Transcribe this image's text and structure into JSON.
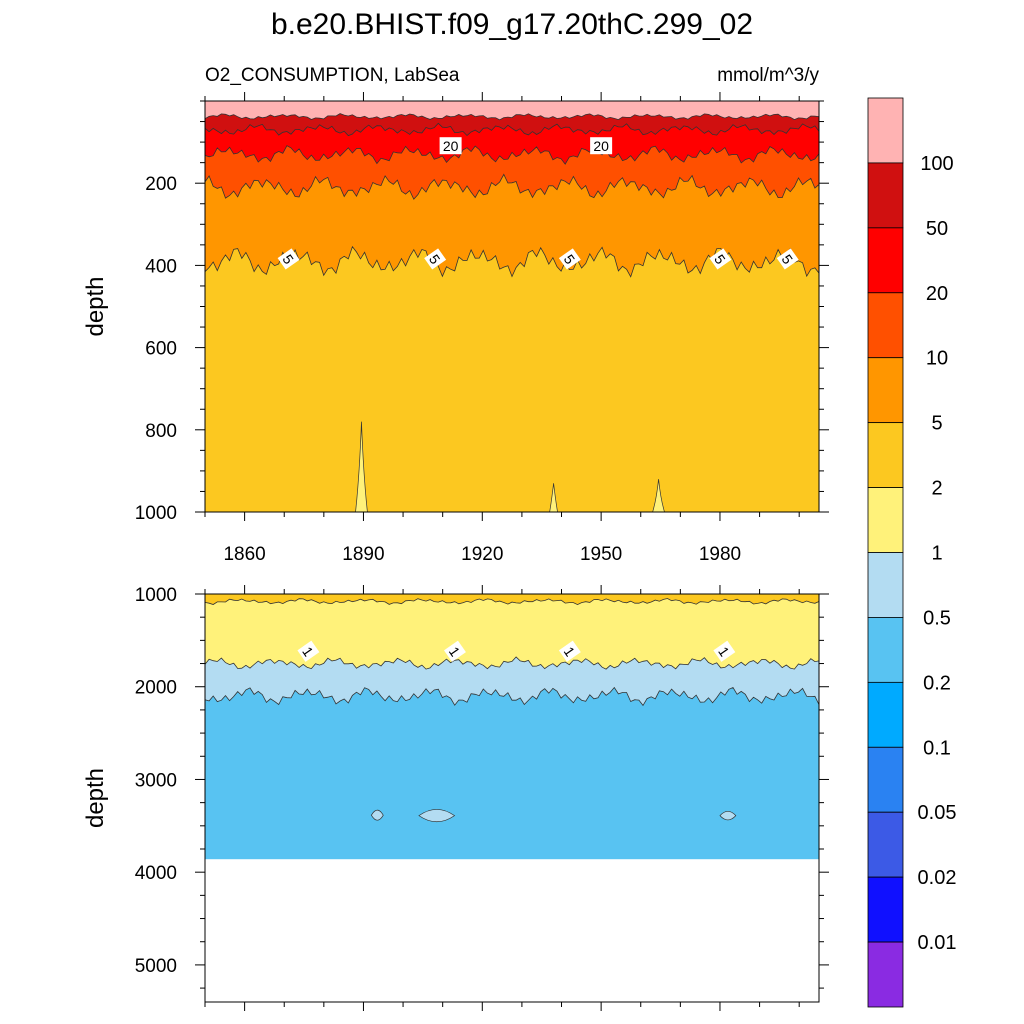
{
  "title": "b.e20.BHIST.f09_g17.20thC.299_02",
  "left_string": "O2_CONSUMPTION, LabSea",
  "right_string": "mmol/m^3/y",
  "chart_data": [
    {
      "type": "heatmap",
      "panel": "upper",
      "ylabel": "depth",
      "xlim": [
        1850,
        2005
      ],
      "ylim": [
        1000,
        0
      ],
      "x_ticks": [
        1860,
        1890,
        1920,
        1950,
        1980
      ],
      "y_ticks": [
        200,
        400,
        600,
        800,
        1000
      ],
      "contour_labels": [
        "20",
        "20",
        "5",
        "5",
        "5",
        "5",
        "5"
      ],
      "bands": [
        {
          "range": "> 100",
          "top_depth": 0,
          "bottom_depth": 38,
          "color": "#ffb3b3"
        },
        {
          "range": "50-100",
          "top_depth": 38,
          "bottom_depth": 70,
          "color": "#d01010"
        },
        {
          "range": "20-50",
          "top_depth": 70,
          "bottom_depth": 130,
          "color": "#ff0000"
        },
        {
          "range": "10-20",
          "top_depth": 130,
          "bottom_depth": 210,
          "color": "#ff5000"
        },
        {
          "range": "5-10",
          "top_depth": 210,
          "bottom_depth": 390,
          "color": "#ff9600"
        },
        {
          "range": "2-5",
          "top_depth": 390,
          "bottom_depth": 1000,
          "color": "#fcc820"
        }
      ],
      "extra_regions": [
        {
          "range": "1-2",
          "years": [
            1888,
            1891
          ],
          "depth": [
            780,
            1000
          ]
        },
        {
          "range": "1-2",
          "years": [
            1937,
            1939
          ],
          "depth": [
            930,
            1000
          ]
        },
        {
          "range": "1-2",
          "years": [
            1963,
            1966
          ],
          "depth": [
            920,
            1000
          ]
        }
      ]
    },
    {
      "type": "heatmap",
      "panel": "lower",
      "ylabel": "depth",
      "xlim": [
        1850,
        2005
      ],
      "ylim": [
        5400,
        1000
      ],
      "y_ticks": [
        1000,
        2000,
        3000,
        4000,
        5000
      ],
      "contour_labels": [
        "1",
        "1",
        "1",
        "1"
      ],
      "data_bottom_depth": 3860,
      "bands": [
        {
          "range": "2-5",
          "top_depth": 1000,
          "bottom_depth": 1080,
          "color": "#fcc820"
        },
        {
          "range": "1-2",
          "top_depth": 1080,
          "bottom_depth": 1750,
          "color": "#fff27a"
        },
        {
          "range": "0.5-1",
          "top_depth": 1750,
          "bottom_depth": 2100,
          "color": "#b3dcf2"
        },
        {
          "range": "0.2-0.5",
          "top_depth": 2100,
          "bottom_depth": 3860,
          "color": "#58c3f2"
        }
      ],
      "extra_regions": [
        {
          "range": "0.5-1",
          "years": [
            1892,
            1895
          ],
          "depth": [
            3320,
            3450
          ]
        },
        {
          "range": "0.5-1",
          "years": [
            1904,
            1913
          ],
          "depth": [
            3300,
            3480
          ]
        },
        {
          "range": "0.5-1",
          "years": [
            1980,
            1984
          ],
          "depth": [
            3340,
            3440
          ]
        }
      ]
    }
  ],
  "colorbar": {
    "labels": [
      "100",
      "50",
      "20",
      "10",
      "5",
      "2",
      "1",
      "0.5",
      "0.2",
      "0.1",
      "0.05",
      "0.02",
      "0.01"
    ],
    "colors": [
      "#ffb3b3",
      "#d01010",
      "#ff0000",
      "#ff5000",
      "#ff9600",
      "#fcc820",
      "#fff27a",
      "#b3dcf2",
      "#58c3f2",
      "#00aaff",
      "#2a82f2",
      "#3c5ae6",
      "#1010ff",
      "#8a2be2"
    ]
  }
}
